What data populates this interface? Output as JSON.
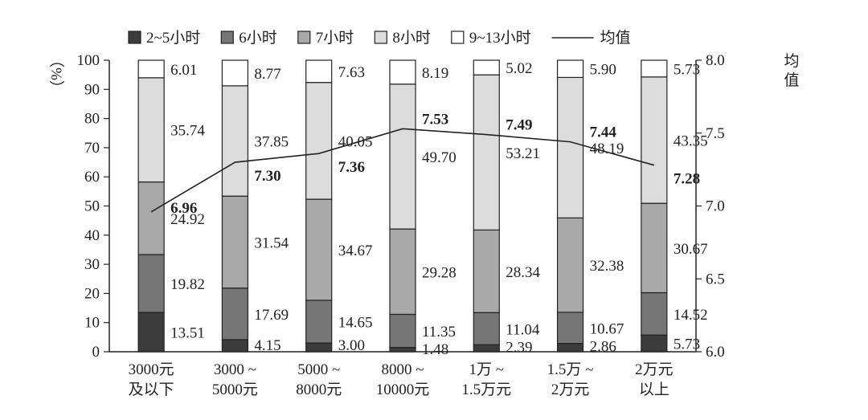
{
  "chart_data": {
    "type": "bar",
    "stacked": true,
    "categories": [
      [
        "3000元",
        "及以下"
      ],
      [
        "3000 ~",
        "5000元"
      ],
      [
        "5000 ~",
        "8000元"
      ],
      [
        "8000 ~",
        "10000元"
      ],
      [
        "1万 ~",
        "1.5万元"
      ],
      [
        "1.5万 ~",
        "2万元"
      ],
      [
        "2万元",
        "以上"
      ]
    ],
    "series": [
      {
        "name": "2~5小时",
        "color": "#3c3c3c",
        "values": [
          13.51,
          4.15,
          3.0,
          1.48,
          2.39,
          2.86,
          5.73
        ],
        "labels": [
          "13.51",
          "4.15",
          "3.00",
          "1.48",
          "2.39",
          "2.86",
          "5.73"
        ]
      },
      {
        "name": "6小时",
        "color": "#767676",
        "values": [
          19.82,
          17.69,
          14.65,
          11.35,
          11.04,
          10.67,
          14.52
        ],
        "labels": [
          "19.82",
          "17.69",
          "14.65",
          "11.35",
          "11.04",
          "10.67",
          "14.52"
        ]
      },
      {
        "name": "7小时",
        "color": "#a9a9a9",
        "values": [
          24.92,
          31.54,
          34.67,
          29.28,
          28.34,
          32.38,
          30.67
        ],
        "labels": [
          "24.92",
          "31.54",
          "34.67",
          "29.28",
          "28.34",
          "32.38",
          "30.67"
        ]
      },
      {
        "name": "8小时",
        "color": "#dcdcdc",
        "values": [
          35.74,
          37.85,
          40.05,
          49.7,
          53.21,
          48.19,
          43.35
        ],
        "labels": [
          "35.74",
          "37.85",
          "40.05",
          "49.70",
          "53.21",
          "48.19",
          "43.35"
        ]
      },
      {
        "name": "9~13小时",
        "color": "#ffffff",
        "values": [
          6.01,
          8.77,
          7.63,
          8.19,
          5.02,
          5.9,
          5.73
        ],
        "labels": [
          "6.01",
          "8.77",
          "7.63",
          "8.19",
          "5.02",
          "5.90",
          "5.73"
        ]
      }
    ],
    "line": {
      "name": "均值",
      "values": [
        6.96,
        7.3,
        7.36,
        7.53,
        7.49,
        7.44,
        7.28
      ],
      "labels": [
        "6.96",
        "7.30",
        "7.36",
        "7.53",
        "7.49",
        "7.44",
        "7.28"
      ]
    },
    "y_left": {
      "label": "（%）",
      "min": 0,
      "max": 100,
      "ticks": [
        "0",
        "10",
        "20",
        "30",
        "40",
        "50",
        "60",
        "70",
        "80",
        "90",
        "100"
      ]
    },
    "y_right": {
      "label": "均值",
      "min": 6.0,
      "max": 8.0,
      "ticks": [
        "6.0",
        "6.5",
        "7.0",
        "7.5",
        "8.0"
      ]
    },
    "legend_position": "top",
    "grid": false
  }
}
